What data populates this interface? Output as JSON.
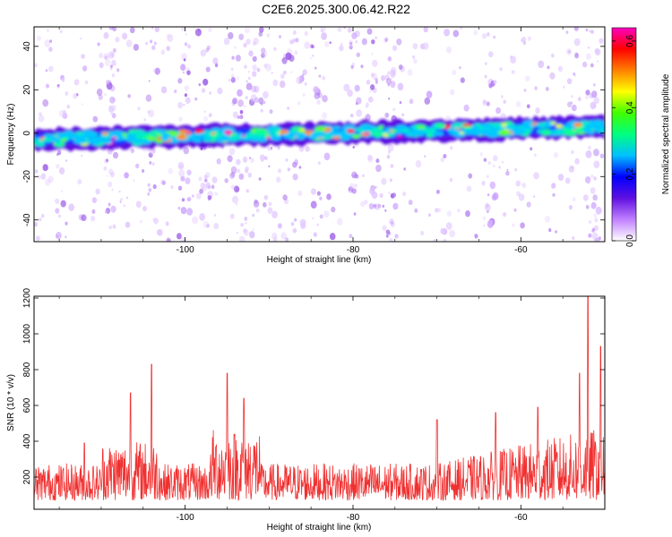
{
  "title": "C2E6.2025.300.06.42.R22",
  "chart_data": [
    {
      "type": "heatmap",
      "name": "spectrogram",
      "title": "C2E6.2025.300.06.42.R22",
      "xlabel": "Height of straight line (km)",
      "ylabel": "Frequency (Hz)",
      "xlim": [
        -118,
        -50
      ],
      "ylim": [
        -50,
        49
      ],
      "xticks": [
        -100,
        -80,
        -60
      ],
      "yticks": [
        -40,
        -20,
        0,
        20,
        40
      ],
      "band": {
        "center_hz_start": -3,
        "center_hz_end": 3,
        "half_width_hz": 5
      },
      "colorbar": {
        "label": "Normalized spectral amplitude",
        "range": [
          0,
          0.64
        ],
        "ticks": [
          0.0,
          0.2,
          0.4,
          0.6
        ],
        "colormap": [
          "#ffffff",
          "#c080ff",
          "#6010e0",
          "#0000ff",
          "#00c0ff",
          "#00ff80",
          "#40ff00",
          "#ffff00",
          "#ff8000",
          "#ff0000",
          "#ff00c0"
        ]
      }
    },
    {
      "type": "line",
      "name": "snr",
      "xlabel": "Height of straight line (km)",
      "ylabel": "SNR (10 * v/v)",
      "xlim": [
        -118,
        -50
      ],
      "ylim": [
        20,
        1210
      ],
      "xticks": [
        -100,
        -80,
        -60
      ],
      "yticks": [
        200,
        400,
        600,
        800,
        1000,
        1200
      ],
      "line_color": "#f03030",
      "num_samples": 1300,
      "peaks": [
        {
          "x": -112,
          "y": 390
        },
        {
          "x": -106.5,
          "y": 670
        },
        {
          "x": -104,
          "y": 830
        },
        {
          "x": -95,
          "y": 780
        },
        {
          "x": -93,
          "y": 640
        },
        {
          "x": -70,
          "y": 520
        },
        {
          "x": -63,
          "y": 560
        },
        {
          "x": -58,
          "y": 590
        },
        {
          "x": -53,
          "y": 780
        },
        {
          "x": -52,
          "y": 1210
        },
        {
          "x": -50.5,
          "y": 930
        }
      ]
    }
  ]
}
